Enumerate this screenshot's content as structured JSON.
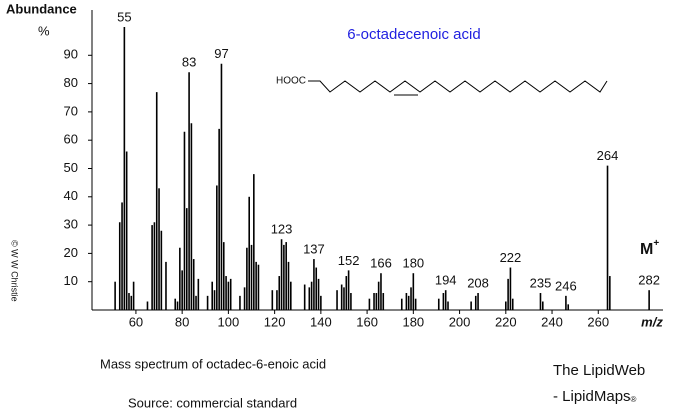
{
  "chart_data": {
    "type": "spectrum",
    "title": "6-octadecenoic acid",
    "title_color": "#1f1fe0",
    "y_label": "Abundance",
    "y_unit": "%",
    "x_label": "m/z",
    "color": "#000000",
    "structure_label": "HOOC",
    "molecular_ion": {
      "text": "M",
      "superscript": "+"
    },
    "copyright": "© W W Christie",
    "caption": "Mass spectrum of octadec-6-enoic acid",
    "source": "Source:  commercial standard",
    "brand_1": "The LipidWeb",
    "brand_2": "- LipidMaps",
    "brand_mark": "®",
    "xlim": [
      41,
      288
    ],
    "ylim": [
      0,
      106
    ],
    "xticks": [
      60,
      80,
      100,
      120,
      140,
      160,
      180,
      200,
      220,
      240,
      260
    ],
    "yticks": [
      10,
      20,
      30,
      40,
      50,
      60,
      70,
      80,
      90
    ],
    "x": [
      51,
      53,
      54,
      55,
      56,
      57,
      58,
      59,
      65,
      67,
      68,
      69,
      70,
      71,
      73,
      77,
      78,
      79,
      80,
      81,
      82,
      83,
      84,
      85,
      86,
      87,
      91,
      93,
      94,
      95,
      96,
      97,
      98,
      99,
      100,
      101,
      105,
      107,
      108,
      109,
      110,
      111,
      112,
      113,
      119,
      121,
      122,
      123,
      124,
      125,
      126,
      127,
      133,
      135,
      136,
      137,
      138,
      139,
      140,
      147,
      149,
      150,
      151,
      152,
      153,
      161,
      163,
      164,
      165,
      166,
      167,
      175,
      177,
      178,
      179,
      180,
      181,
      191,
      193,
      194,
      195,
      205,
      207,
      208,
      220,
      221,
      222,
      223,
      235,
      236,
      246,
      247,
      264,
      265,
      282
    ],
    "values": [
      10,
      31,
      38,
      100,
      56,
      6,
      5,
      10,
      3,
      30,
      31,
      77,
      43,
      28,
      17,
      4,
      3,
      22,
      14,
      63,
      36,
      84,
      66,
      18,
      5,
      11,
      5,
      10,
      7,
      44,
      64,
      87,
      24,
      12,
      10,
      11,
      5,
      8,
      22,
      40,
      23,
      48,
      17,
      16,
      7,
      7,
      12,
      25,
      23,
      24,
      17,
      10,
      9,
      8,
      10,
      18,
      15,
      11,
      5,
      7,
      9,
      8,
      12,
      14,
      6,
      4,
      6,
      6,
      10,
      13,
      6,
      4,
      6,
      5,
      8,
      13,
      4,
      4,
      6,
      7,
      3,
      3,
      5,
      6,
      3,
      11,
      15,
      4,
      6,
      3,
      5,
      2,
      51,
      12,
      7
    ],
    "labeled_x": [
      55,
      83,
      97,
      123,
      137,
      152,
      166,
      180,
      194,
      208,
      222,
      235,
      246,
      264,
      282
    ]
  }
}
